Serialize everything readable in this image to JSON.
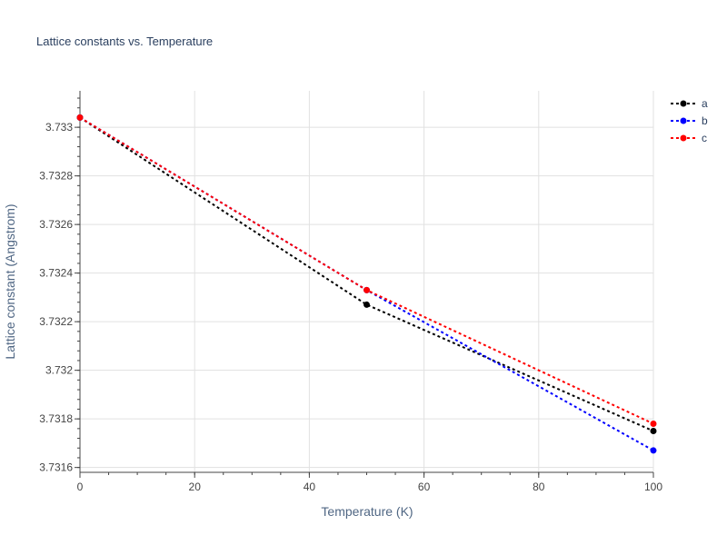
{
  "chart_data": {
    "type": "line",
    "title": "Lattice constants vs. Temperature",
    "xlabel": "Temperature (K)",
    "ylabel": "Lattice constant (Angstrom)",
    "xlim": [
      0,
      100
    ],
    "ylim": [
      3.73158,
      3.73315
    ],
    "xticks": [
      0,
      20,
      40,
      60,
      80,
      100
    ],
    "xtick_labels": [
      "0",
      "20",
      "40",
      "60",
      "80",
      "100"
    ],
    "yticks": [
      3.7316,
      3.7318,
      3.732,
      3.7322,
      3.7324,
      3.7326,
      3.7328,
      3.733
    ],
    "ytick_labels": [
      "3.7316",
      "3.7318",
      "3.732",
      "3.7322",
      "3.7324",
      "3.7326",
      "3.7328",
      "3.733"
    ],
    "grid": true,
    "legend_position": "top-right",
    "x": [
      0,
      50,
      100
    ],
    "series": [
      {
        "name": "a",
        "color": "#000000",
        "values": [
          3.73304,
          3.73227,
          3.73175
        ]
      },
      {
        "name": "b",
        "color": "#0000ff",
        "values": [
          3.73304,
          3.73233,
          3.73167
        ]
      },
      {
        "name": "c",
        "color": "#ff0000",
        "values": [
          3.73304,
          3.73233,
          3.73178
        ]
      }
    ]
  }
}
